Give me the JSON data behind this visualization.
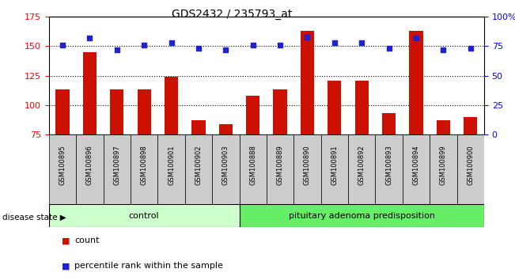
{
  "title": "GDS2432 / 235793_at",
  "categories": [
    "GSM100895",
    "GSM100896",
    "GSM100897",
    "GSM100898",
    "GSM100901",
    "GSM100902",
    "GSM100903",
    "GSM100888",
    "GSM100889",
    "GSM100890",
    "GSM100891",
    "GSM100892",
    "GSM100893",
    "GSM100894",
    "GSM100899",
    "GSM100900"
  ],
  "bar_values": [
    113,
    145,
    113,
    113,
    124,
    87,
    84,
    108,
    113,
    163,
    121,
    121,
    93,
    163,
    87,
    90
  ],
  "dot_values": [
    76,
    82,
    72,
    76,
    78,
    73,
    72,
    76,
    76,
    83,
    78,
    78,
    73,
    82,
    72,
    73
  ],
  "bar_color": "#cc1100",
  "dot_color": "#2222cc",
  "ylim_left": [
    75,
    175
  ],
  "ylim_right": [
    0,
    100
  ],
  "yticks_left": [
    75,
    100,
    125,
    150,
    175
  ],
  "yticks_right": [
    0,
    25,
    50,
    75,
    100
  ],
  "yticklabels_right": [
    "0",
    "25",
    "50",
    "75",
    "100%"
  ],
  "group1_label": "control",
  "group1_count": 7,
  "group2_label": "pituitary adenoma predisposition",
  "group2_count": 9,
  "group1_color": "#ccffcc",
  "group2_color": "#66ee66",
  "disease_state_label": "disease state",
  "legend_entries": [
    "count",
    "percentile rank within the sample"
  ],
  "legend_colors": [
    "#cc1100",
    "#2222cc"
  ],
  "background_color": "#ffffff",
  "bar_width": 0.5,
  "ticklabel_bg": "#cccccc"
}
